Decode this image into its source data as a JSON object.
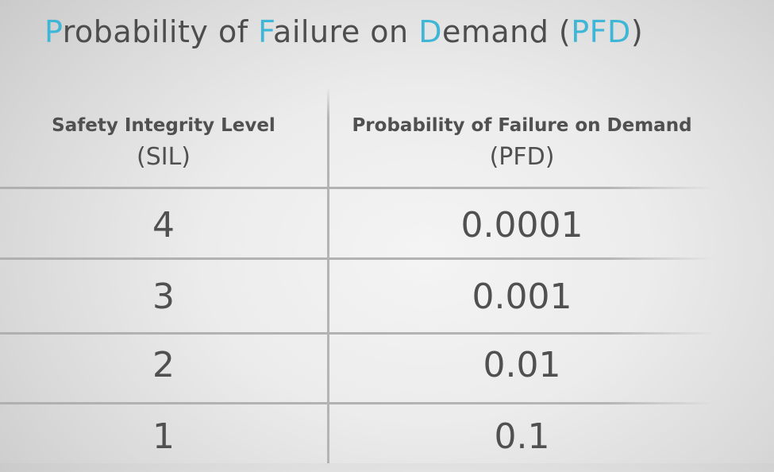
{
  "title": {
    "parts": [
      "P",
      "robability of ",
      "F",
      "ailure on ",
      "D",
      "emand (",
      "PFD",
      ")"
    ],
    "accent_color": "#3fb6d6"
  },
  "table": {
    "headers": {
      "sil": {
        "line1": "Safety Integrity Level",
        "line2": "(SIL)"
      },
      "pfd": {
        "line1": "Probability of Failure on Demand",
        "line2": "(PFD)"
      }
    },
    "rows": [
      {
        "sil": "4",
        "pfd": "0.0001"
      },
      {
        "sil": "3",
        "pfd": "0.001"
      },
      {
        "sil": "2",
        "pfd": "0.01"
      },
      {
        "sil": "1",
        "pfd": "0.1"
      }
    ]
  }
}
